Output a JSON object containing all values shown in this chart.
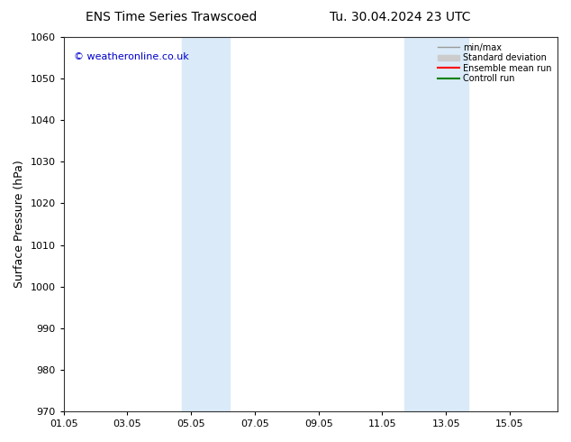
{
  "title_left": "ENS Time Series Trawscoed",
  "title_right": "Tu. 30.04.2024 23 UTC",
  "ylabel": "Surface Pressure (hPa)",
  "ylim": [
    970,
    1060
  ],
  "yticks": [
    970,
    980,
    990,
    1000,
    1010,
    1020,
    1030,
    1040,
    1050,
    1060
  ],
  "xlim_start": 0.0,
  "xlim_end": 15.5,
  "xtick_labels": [
    "01.05",
    "03.05",
    "05.05",
    "07.05",
    "09.05",
    "11.05",
    "13.05",
    "15.05"
  ],
  "xtick_positions": [
    0,
    2,
    4,
    6,
    8,
    10,
    12,
    14
  ],
  "shaded_bands": [
    {
      "x_start": 3.7,
      "x_end": 5.2
    },
    {
      "x_start": 10.7,
      "x_end": 12.7
    }
  ],
  "shade_color": "#daeaf8",
  "copyright_text": "© weatheronline.co.uk",
  "copyright_color": "#0000cc",
  "legend_entries": [
    {
      "label": "min/max",
      "color": "#999999",
      "lw": 1.0,
      "style": "-",
      "type": "line"
    },
    {
      "label": "Standard deviation",
      "color": "#cccccc",
      "lw": 8,
      "style": "-",
      "type": "patch"
    },
    {
      "label": "Ensemble mean run",
      "color": "#ff0000",
      "lw": 1.5,
      "style": "-",
      "type": "line"
    },
    {
      "label": "Controll run",
      "color": "#008000",
      "lw": 1.5,
      "style": "-",
      "type": "line"
    }
  ],
  "bg_color": "#ffffff",
  "plot_bg_color": "#ffffff",
  "title_fontsize": 10,
  "label_fontsize": 9,
  "tick_fontsize": 8,
  "copyright_fontsize": 8,
  "legend_fontsize": 7
}
